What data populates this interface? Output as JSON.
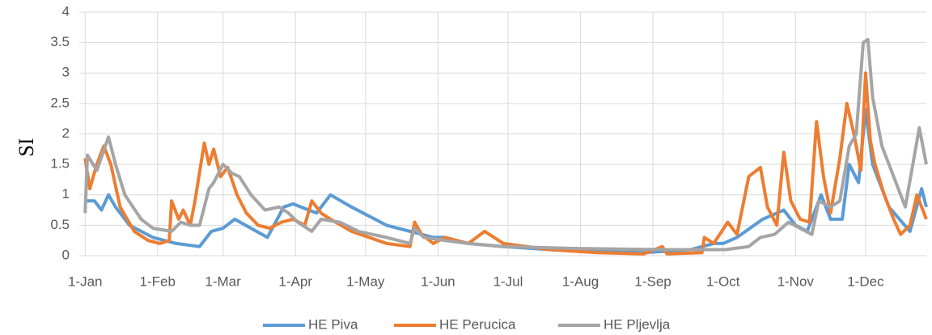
{
  "chart_data": {
    "type": "line",
    "y_label": "SI",
    "xlim": [
      -1.5,
      361
    ],
    "xticks": [
      {
        "value": 1,
        "label": "1-Jan"
      },
      {
        "value": 32,
        "label": "1-Feb"
      },
      {
        "value": 60,
        "label": "1-Mar"
      },
      {
        "value": 91,
        "label": "1-Apr"
      },
      {
        "value": 121,
        "label": "1-May"
      },
      {
        "value": 152,
        "label": "1-Jun"
      },
      {
        "value": 182,
        "label": "1-Jul"
      },
      {
        "value": 213,
        "label": "1-Aug"
      },
      {
        "value": 244,
        "label": "1-Sep"
      },
      {
        "value": 274,
        "label": "1-Oct"
      },
      {
        "value": 305,
        "label": "1-Nov"
      },
      {
        "value": 335,
        "label": "1-Dec"
      }
    ],
    "ylim": [
      0,
      4
    ],
    "yticks": [
      0,
      0.5,
      1,
      1.5,
      2,
      2.5,
      3,
      3.5,
      4
    ],
    "grid": true,
    "legend": "bottom",
    "series": [
      {
        "name": "HE Piva",
        "color": "#5b9bd5",
        "x": [
          1,
          5,
          8,
          11,
          14,
          20,
          30,
          40,
          50,
          55,
          60,
          65,
          72,
          79,
          86,
          90,
          100,
          106,
          115,
          130,
          150,
          155,
          165,
          180,
          200,
          220,
          240,
          260,
          270,
          274,
          280,
          291,
          300,
          305,
          310,
          316,
          320,
          325,
          328,
          332,
          335,
          338,
          345,
          354,
          359,
          361
        ],
        "values": [
          0.9,
          0.9,
          0.75,
          1.0,
          0.8,
          0.5,
          0.3,
          0.2,
          0.15,
          0.4,
          0.45,
          0.6,
          0.45,
          0.3,
          0.8,
          0.85,
          0.7,
          1.0,
          0.8,
          0.5,
          0.3,
          0.3,
          0.2,
          0.15,
          0.1,
          0.07,
          0.05,
          0.1,
          0.2,
          0.2,
          0.3,
          0.6,
          0.75,
          0.5,
          0.4,
          1.0,
          0.6,
          0.6,
          1.5,
          1.2,
          2.4,
          1.5,
          0.8,
          0.4,
          1.1,
          0.8
        ]
      },
      {
        "name": "HE Perucica",
        "color": "#ed7d31",
        "x": [
          1,
          3,
          6,
          9,
          12,
          16,
          22,
          28,
          33,
          37,
          38,
          41,
          43,
          46,
          48,
          52,
          54,
          56,
          59,
          62,
          66,
          70,
          75,
          80,
          85,
          90,
          95,
          98,
          102,
          106,
          115,
          130,
          140,
          142,
          145,
          150,
          155,
          165,
          172,
          180,
          200,
          220,
          240,
          248,
          250,
          265,
          266,
          270,
          276,
          280,
          285,
          290,
          293,
          297,
          300,
          303,
          307,
          311,
          314,
          317,
          320,
          324,
          327,
          330,
          333,
          335,
          337,
          339,
          343,
          347,
          350,
          354,
          357,
          361
        ],
        "values": [
          1.6,
          1.1,
          1.5,
          1.8,
          1.5,
          0.8,
          0.4,
          0.25,
          0.2,
          0.25,
          0.9,
          0.6,
          0.75,
          0.5,
          0.9,
          1.85,
          1.5,
          1.75,
          1.3,
          1.45,
          1.0,
          0.7,
          0.5,
          0.45,
          0.55,
          0.6,
          0.5,
          0.9,
          0.7,
          0.6,
          0.4,
          0.2,
          0.15,
          0.55,
          0.35,
          0.2,
          0.3,
          0.2,
          0.4,
          0.2,
          0.1,
          0.05,
          0.03,
          0.15,
          0.03,
          0.05,
          0.3,
          0.2,
          0.55,
          0.35,
          1.3,
          1.45,
          0.8,
          0.5,
          1.7,
          0.9,
          0.6,
          0.55,
          2.2,
          1.3,
          0.7,
          1.6,
          2.5,
          2.0,
          1.4,
          3.0,
          1.9,
          1.5,
          1.0,
          0.6,
          0.35,
          0.5,
          1.0,
          0.6
        ]
      },
      {
        "name": "HE Pljevlja",
        "color": "#a5a5a5",
        "x": [
          1,
          2,
          6,
          11,
          14,
          18,
          25,
          30,
          38,
          42,
          46,
          50,
          54,
          56,
          60,
          64,
          67,
          72,
          78,
          84,
          88,
          92,
          98,
          102,
          110,
          118,
          130,
          140,
          142,
          146,
          155,
          165,
          180,
          210,
          250,
          275,
          285,
          290,
          296,
          302,
          307,
          312,
          315,
          320,
          324,
          328,
          331,
          334,
          336,
          338,
          342,
          347,
          352,
          358,
          361
        ],
        "values": [
          0.7,
          1.65,
          1.4,
          1.95,
          1.5,
          1.0,
          0.6,
          0.45,
          0.4,
          0.55,
          0.5,
          0.5,
          1.1,
          1.2,
          1.5,
          1.35,
          1.3,
          1.0,
          0.75,
          0.8,
          0.7,
          0.55,
          0.4,
          0.6,
          0.55,
          0.4,
          0.3,
          0.2,
          0.45,
          0.3,
          0.25,
          0.2,
          0.15,
          0.12,
          0.1,
          0.1,
          0.15,
          0.3,
          0.35,
          0.55,
          0.45,
          0.35,
          0.9,
          0.8,
          0.9,
          1.8,
          2.0,
          3.5,
          3.55,
          2.6,
          1.8,
          1.3,
          0.8,
          2.1,
          1.5
        ]
      }
    ]
  }
}
